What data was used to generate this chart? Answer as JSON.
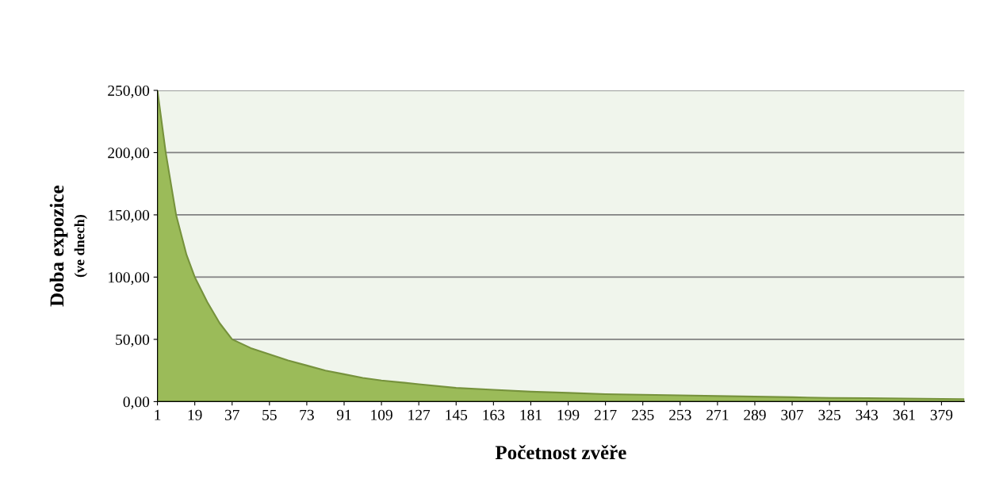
{
  "chart_data": {
    "type": "area",
    "xlabel": "Početnost zvěře",
    "ylabel": "Doba expozice",
    "annotations": [
      "(ve dnech)"
    ],
    "x": [
      1,
      5,
      10,
      15,
      19,
      25,
      31,
      37,
      46,
      55,
      64,
      73,
      82,
      91,
      100,
      109,
      127,
      145,
      163,
      181,
      199,
      217,
      235,
      253,
      271,
      289,
      307,
      325,
      343,
      361,
      379,
      390
    ],
    "values": [
      250,
      200,
      150,
      118,
      100,
      80,
      63,
      50,
      43,
      38,
      33,
      29,
      25,
      22,
      19,
      17,
      14,
      11,
      9.5,
      8,
      7,
      6,
      5.5,
      5,
      4.5,
      4,
      3.5,
      3,
      2.8,
      2.5,
      2.2,
      2
    ],
    "color": "#9bbb59",
    "xlim": [
      1,
      390
    ],
    "xticks": [
      1,
      19,
      37,
      55,
      73,
      91,
      109,
      127,
      145,
      163,
      181,
      199,
      217,
      235,
      253,
      271,
      289,
      307,
      325,
      343,
      361,
      379
    ],
    "ylim": [
      0,
      250
    ],
    "yticks": [
      {
        "value": 0,
        "label": "0,00"
      },
      {
        "value": 50,
        "label": "50,00"
      },
      {
        "value": 100,
        "label": "100,00"
      },
      {
        "value": 150,
        "label": "150,00"
      },
      {
        "value": 200,
        "label": "200,00"
      },
      {
        "value": 250,
        "label": "250,00"
      }
    ],
    "grid": "y"
  }
}
